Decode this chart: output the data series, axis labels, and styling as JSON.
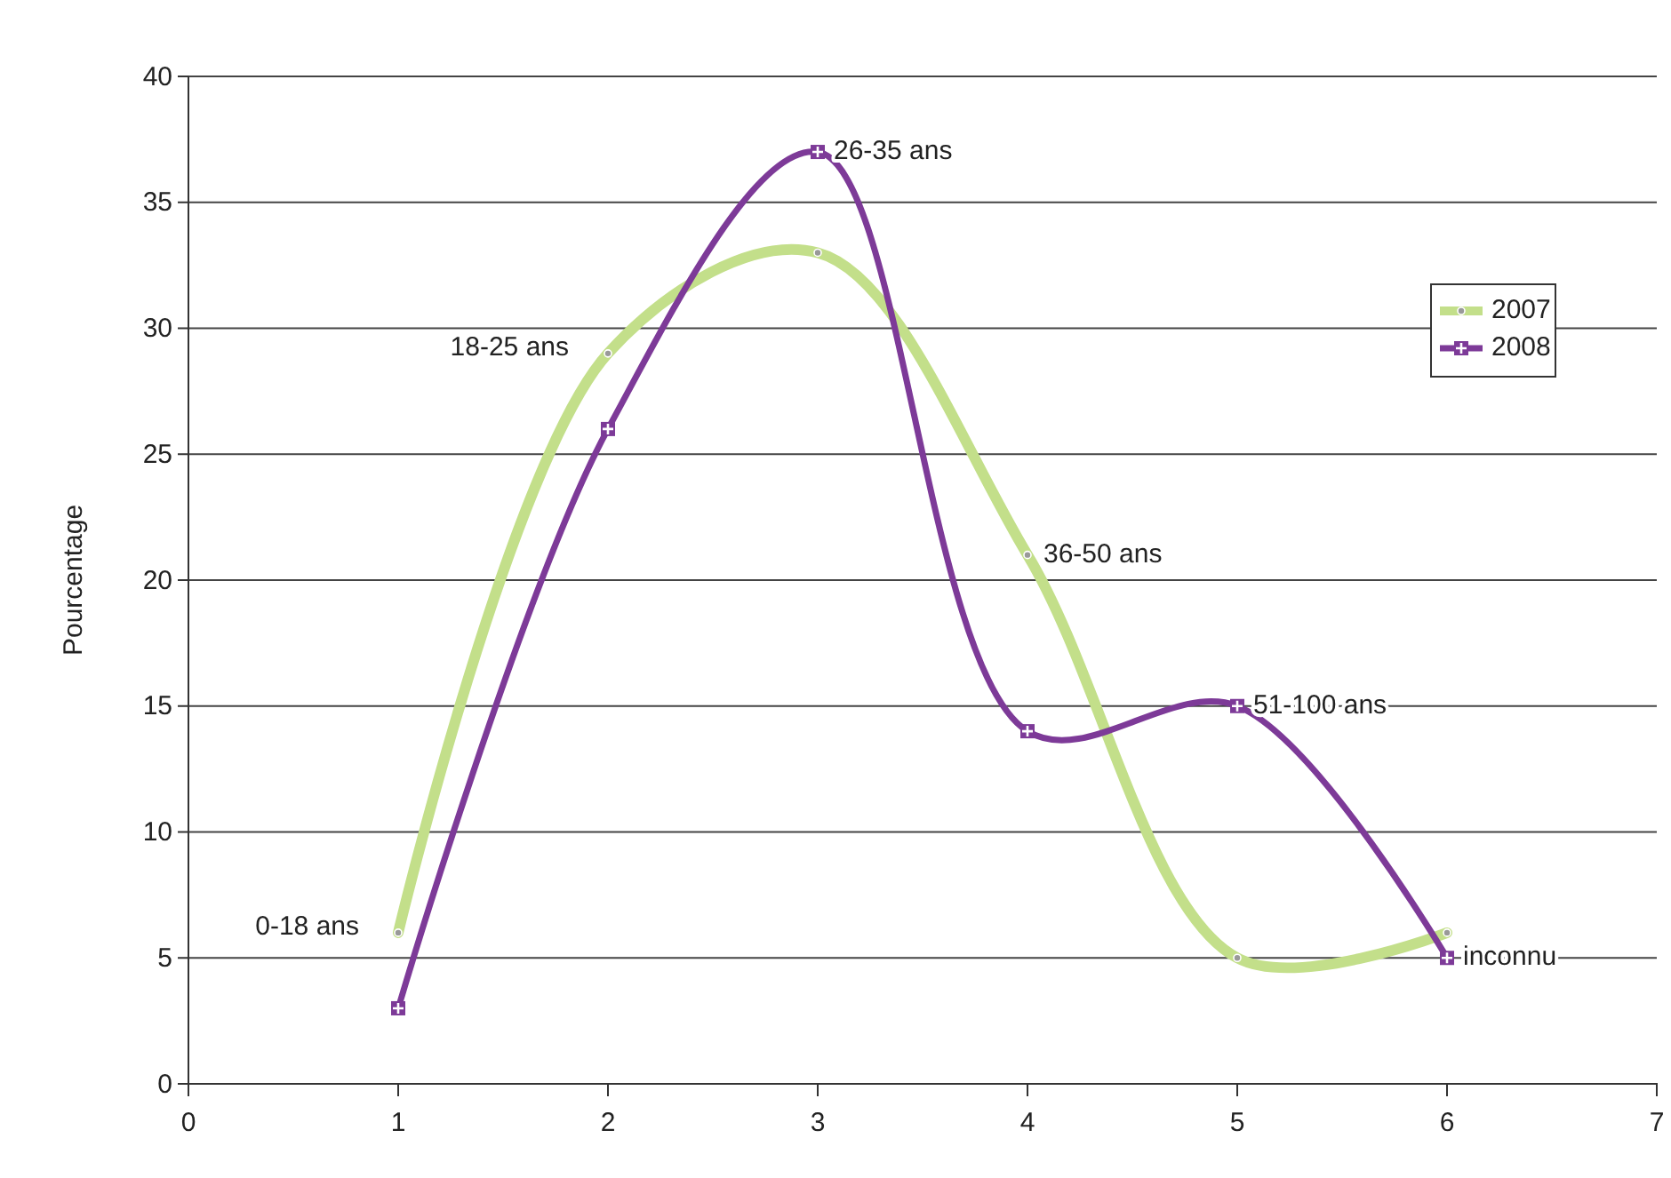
{
  "chart_data": {
    "type": "line",
    "ylabel": "Pourcentage",
    "x": [
      1,
      2,
      3,
      4,
      5,
      6
    ],
    "series": [
      {
        "name": "2007",
        "color": "#c3df8a",
        "values": [
          6,
          29,
          33,
          21,
          5,
          6
        ],
        "marker": "circle"
      },
      {
        "name": "2008",
        "color": "#7d3a98",
        "values": [
          3,
          26,
          37,
          14,
          15,
          5
        ],
        "marker": "square"
      }
    ],
    "xlim": [
      0,
      7
    ],
    "xticks": [
      0,
      1,
      2,
      3,
      4,
      5,
      6,
      7
    ],
    "ylim": [
      0,
      40
    ],
    "yticks": [
      0,
      5,
      10,
      15,
      20,
      25,
      30,
      35,
      40
    ],
    "grid": "y",
    "legend": "right",
    "line_style": "solid",
    "annotations": [
      {
        "text": "0-18 ans",
        "x": 1,
        "y": 6
      },
      {
        "text": "18-25 ans",
        "x": 2,
        "y": 29
      },
      {
        "text": "26-35 ans",
        "x": 3,
        "y": 37
      },
      {
        "text": "36-50 ans",
        "x": 4,
        "y": 21
      },
      {
        "text": "51-100 ans",
        "x": 5,
        "y": 15
      },
      {
        "text": "inconnu",
        "x": 6,
        "y": 5
      }
    ]
  }
}
